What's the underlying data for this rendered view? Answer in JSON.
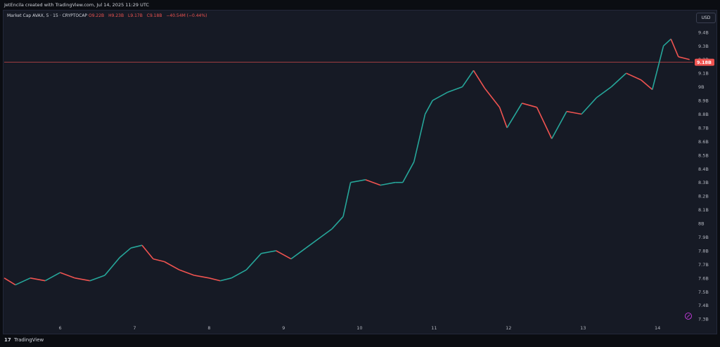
{
  "header": {
    "created": "JetEncila created with TradingView.com, Jul 14, 2025 11:29 UTC"
  },
  "legend": {
    "symbol": "Market Cap AVAX, 5 · 15 · CRYPTOCAP",
    "open": "O9.22B",
    "high": "H9.23B",
    "low": "L9.17B",
    "close": "C9.18B",
    "change": "−40.54M (−0.44%)"
  },
  "currency": "USD",
  "price_tag": "9.18B",
  "footer": {
    "logo": "17",
    "brand": "TradingView"
  },
  "colors": {
    "up": "#26a69a",
    "down": "#ef5350",
    "bg": "#161a25"
  },
  "chart_data": {
    "type": "line",
    "title": "Market Cap AVAX",
    "x_ticks": [
      "6",
      "7",
      "8",
      "9",
      "10",
      "11",
      "12",
      "13",
      "14"
    ],
    "y_ticks": [
      "9.4B",
      "9.3B",
      "9.2B",
      "9.1B",
      "9B",
      "8.9B",
      "8.8B",
      "8.7B",
      "8.6B",
      "8.5B",
      "8.4B",
      "8.3B",
      "8.2B",
      "8.1B",
      "8B",
      "7.9B",
      "7.8B",
      "7.7B",
      "7.6B",
      "7.5B",
      "7.4B",
      "7.3B"
    ],
    "ylim": [
      7.27,
      9.43
    ],
    "xlim": [
      5.25,
      14.5
    ],
    "current_price": 9.18,
    "series": [
      {
        "x": [
          5.25,
          5.4,
          5.6,
          5.8,
          6.0,
          6.2,
          6.4,
          6.6,
          6.8,
          6.95,
          7.1,
          7.25,
          7.4,
          7.6,
          7.8,
          8.0,
          8.15,
          8.3,
          8.5,
          8.7,
          8.9,
          9.1,
          9.3,
          9.5,
          9.65,
          9.8,
          9.9,
          10.1,
          10.3,
          10.5,
          10.6,
          10.75,
          10.9,
          11.0,
          11.2,
          11.4,
          11.55,
          11.7,
          11.9,
          12.0,
          12.2,
          12.4,
          12.6,
          12.8,
          13.0,
          13.2,
          13.4,
          13.6,
          13.8,
          13.95,
          14.1,
          14.2,
          14.3,
          14.45
        ],
        "y": [
          7.6,
          7.55,
          7.6,
          7.58,
          7.64,
          7.6,
          7.58,
          7.62,
          7.75,
          7.82,
          7.84,
          7.74,
          7.72,
          7.66,
          7.62,
          7.6,
          7.58,
          7.6,
          7.66,
          7.78,
          7.8,
          7.74,
          7.82,
          7.9,
          7.96,
          8.05,
          8.3,
          8.32,
          8.28,
          8.3,
          8.3,
          8.45,
          8.8,
          8.9,
          8.96,
          9.0,
          9.12,
          8.99,
          8.85,
          8.7,
          8.88,
          8.85,
          8.62,
          8.82,
          8.8,
          8.92,
          9.0,
          9.1,
          9.05,
          8.98,
          9.3,
          9.35,
          9.22,
          9.2
        ]
      }
    ]
  }
}
